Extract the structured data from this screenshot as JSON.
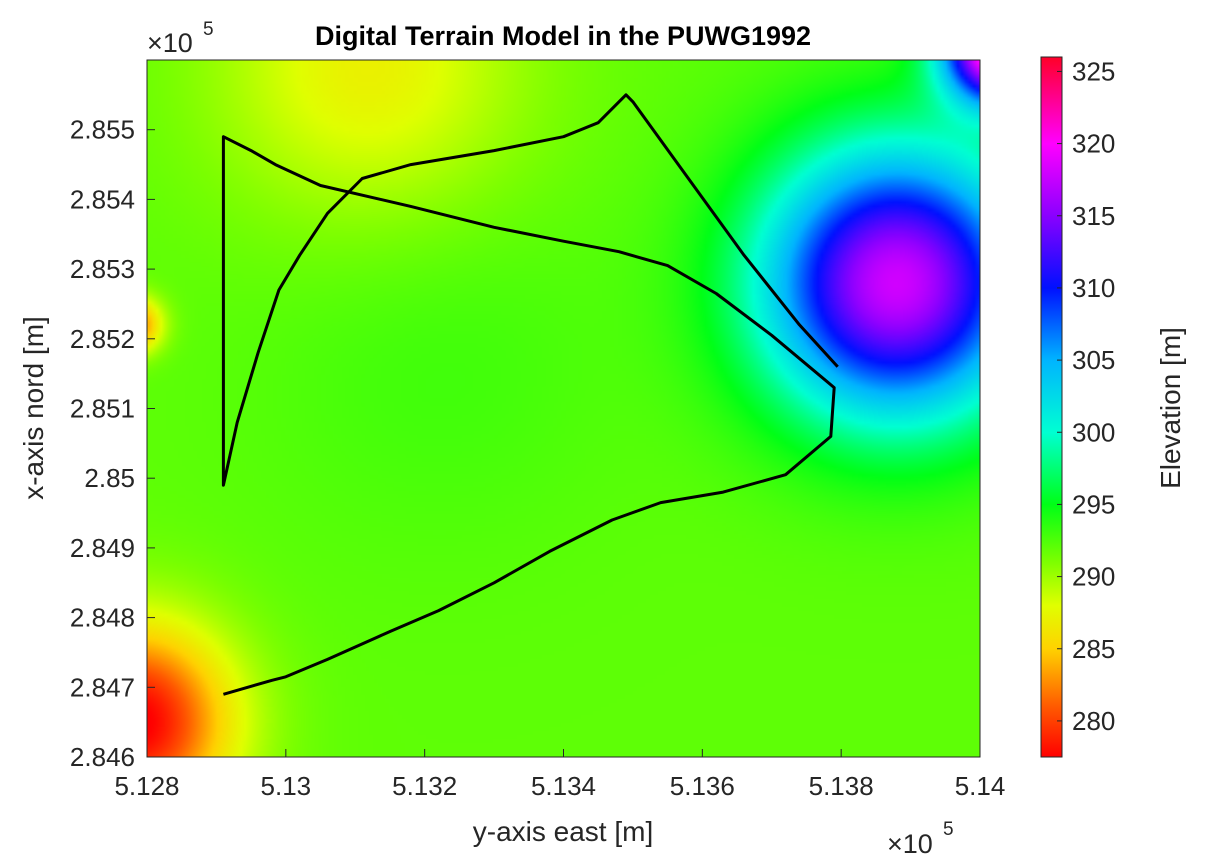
{
  "chart_data": {
    "type": "heatmap",
    "title": "Digital Terrain Model in the PUWG1992",
    "xlabel": "y-axis east [m]",
    "ylabel": "x-axis nord [m]",
    "colorbar_label": "Elevation [m]",
    "xlim": [
      5.128,
      5.14
    ],
    "ylim": [
      2.846,
      2.856
    ],
    "x_exponent": {
      "base": "×10",
      "power": "5"
    },
    "y_exponent": {
      "base": "×10",
      "power": "5"
    },
    "x_ticks": [
      5.128,
      5.13,
      5.132,
      5.134,
      5.136,
      5.138,
      5.14
    ],
    "x_tick_labels": [
      "5.128",
      "5.13",
      "5.132",
      "5.134",
      "5.136",
      "5.138",
      "5.14"
    ],
    "y_ticks": [
      2.846,
      2.847,
      2.848,
      2.849,
      2.85,
      2.851,
      2.852,
      2.853,
      2.854,
      2.855
    ],
    "y_tick_labels": [
      "2.846",
      "2.847",
      "2.848",
      "2.849",
      "2.85",
      "2.851",
      "2.852",
      "2.853",
      "2.854",
      "2.855"
    ],
    "colorbar_range": [
      277.5,
      326
    ],
    "colorbar_ticks": [
      280,
      285,
      290,
      295,
      300,
      305,
      310,
      315,
      320,
      325
    ],
    "colorbar_tick_labels": [
      "280",
      "285",
      "290",
      "295",
      "300",
      "305",
      "310",
      "315",
      "320",
      "325"
    ],
    "colormap": [
      {
        "value": 277.5,
        "color": "#ff0000"
      },
      {
        "value": 281,
        "color": "#ff5a00"
      },
      {
        "value": 285,
        "color": "#ffd200"
      },
      {
        "value": 288,
        "color": "#e0ff00"
      },
      {
        "value": 291,
        "color": "#7dff00"
      },
      {
        "value": 295,
        "color": "#00ff16"
      },
      {
        "value": 300,
        "color": "#00ffd2"
      },
      {
        "value": 305,
        "color": "#00b4ff"
      },
      {
        "value": 310,
        "color": "#0010ff"
      },
      {
        "value": 315,
        "color": "#8a00ff"
      },
      {
        "value": 320,
        "color": "#ff00ff"
      },
      {
        "value": 326,
        "color": "#ff0028"
      }
    ],
    "elevation_features": [
      {
        "kind": "base",
        "z": 292
      },
      {
        "kind": "low",
        "x": 5.1278,
        "y": 2.8465,
        "z": 277,
        "radius": 0.0014
      },
      {
        "kind": "low",
        "x": 5.1278,
        "y": 2.8522,
        "z": 281,
        "radius": 0.0004
      },
      {
        "kind": "high",
        "x": 5.1388,
        "y": 2.8528,
        "z": 318,
        "radius": 0.0019
      },
      {
        "kind": "high",
        "x": 5.1403,
        "y": 2.8562,
        "z": 326,
        "radius": 0.0008
      },
      {
        "kind": "valley",
        "x": 5.1322,
        "y": 2.8517,
        "z": 293,
        "radius": 0.0025
      },
      {
        "kind": "ridge",
        "x": 5.1312,
        "y": 2.8559,
        "z": 287,
        "radius": 0.0022
      }
    ],
    "boundary_line": {
      "name": "area-boundary",
      "color": "#000000",
      "x": [
        5.1291,
        5.1298,
        5.13,
        5.1306,
        5.1315,
        5.1322,
        5.133,
        5.1338,
        5.1347,
        5.1354,
        5.1363,
        5.1372,
        5.13785,
        5.1379,
        5.137,
        5.1362,
        5.1355,
        5.1348,
        5.134,
        5.133,
        5.1318,
        5.1305,
        5.12985,
        5.1295,
        5.1291,
        5.1291,
        5.1293,
        5.1296,
        5.1299,
        5.1302,
        5.1306,
        5.1311,
        5.1318,
        5.133,
        5.134,
        5.1345,
        5.1348,
        5.1349,
        5.135,
        5.1358,
        5.1366,
        5.1374,
        5.13795
      ],
      "y": [
        2.8469,
        2.8471,
        2.84715,
        2.8474,
        2.8478,
        2.8481,
        2.8485,
        2.84895,
        2.8494,
        2.84965,
        2.8498,
        2.85005,
        2.8506,
        2.8513,
        2.85205,
        2.85265,
        2.85305,
        2.85325,
        2.8534,
        2.8536,
        2.8539,
        2.8542,
        2.8545,
        2.8547,
        2.8549,
        2.8499,
        2.8508,
        2.8518,
        2.8527,
        2.8532,
        2.8538,
        2.8543,
        2.8545,
        2.8547,
        2.8549,
        2.8551,
        2.8554,
        2.8555,
        2.8554,
        2.8543,
        2.8532,
        2.8522,
        2.8516
      ]
    }
  }
}
